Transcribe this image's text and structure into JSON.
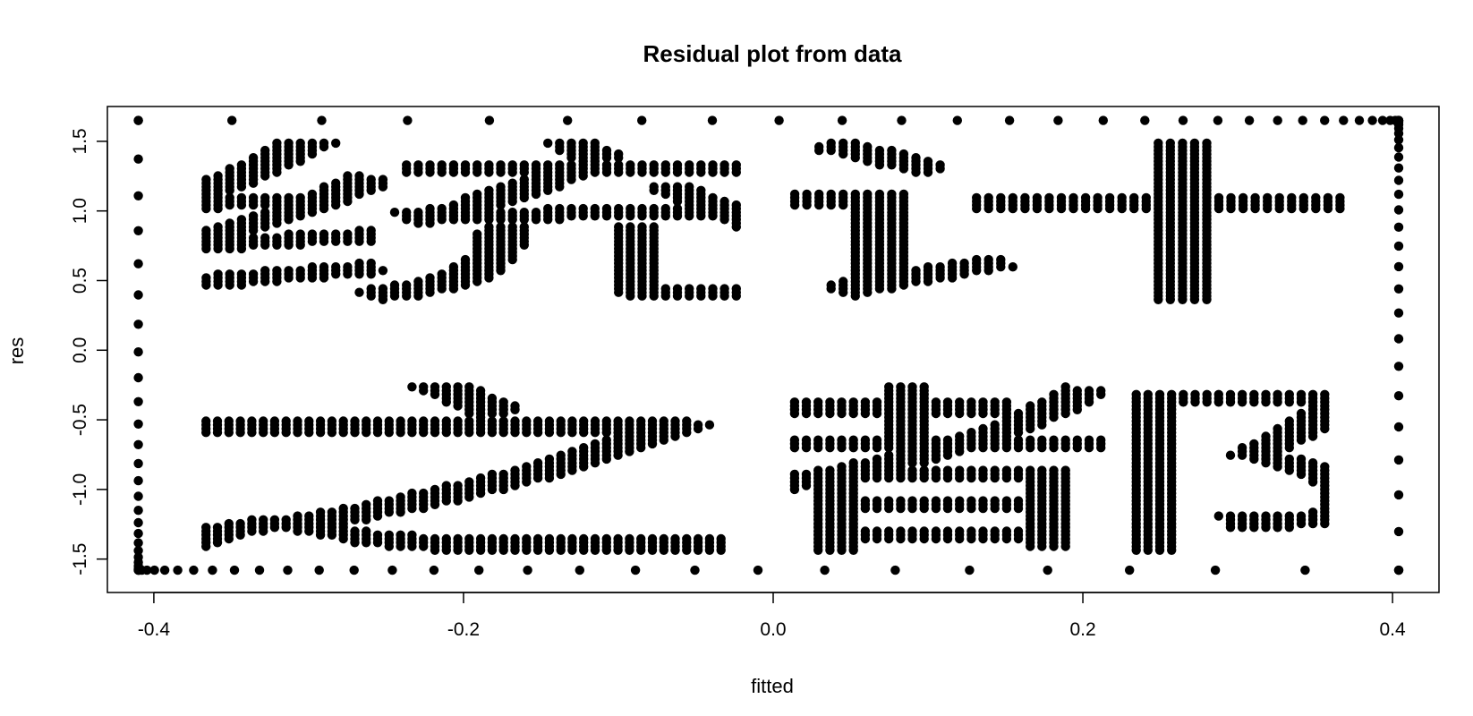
{
  "chart_data": {
    "type": "scatter",
    "title": "Residual plot from data",
    "xlabel": "fitted",
    "ylabel": "res",
    "xlim": [
      -0.43,
      0.43
    ],
    "ylim": [
      -1.74,
      1.75
    ],
    "xticks": [
      -0.4,
      -0.2,
      0.0,
      0.2,
      0.4
    ],
    "xtick_labels": [
      "-0.4",
      "-0.2",
      "0.0",
      "0.2",
      "0.4"
    ],
    "yticks": [
      -1.5,
      -1.0,
      -0.5,
      0.0,
      0.5,
      1.0,
      1.5
    ],
    "ytick_labels": [
      "-1.5",
      "-1.0",
      "-0.5",
      "0.0",
      "0.5",
      "1.0",
      "1.5"
    ],
    "grid": false,
    "marker_color": "#000000",
    "points_description": "Dense filled points forming the characters 统计之都 framed by a dotted border",
    "glyphs": [
      {
        "char": "统",
        "x": [
          -0.37,
          -0.02
        ],
        "y": [
          0.35,
          1.5
        ]
      },
      {
        "char": "计",
        "x": [
          0.01,
          0.37
        ],
        "y": [
          0.35,
          1.5
        ]
      },
      {
        "char": "之",
        "x": [
          -0.37,
          -0.03
        ],
        "y": [
          -1.45,
          -0.25
        ]
      },
      {
        "char": "都",
        "x": [
          0.01,
          0.36
        ],
        "y": [
          -1.45,
          -0.25
        ]
      }
    ],
    "border": {
      "top_y": 1.65,
      "bottom_y": -1.58,
      "left_x": -0.41,
      "right_x": 0.404
    }
  }
}
